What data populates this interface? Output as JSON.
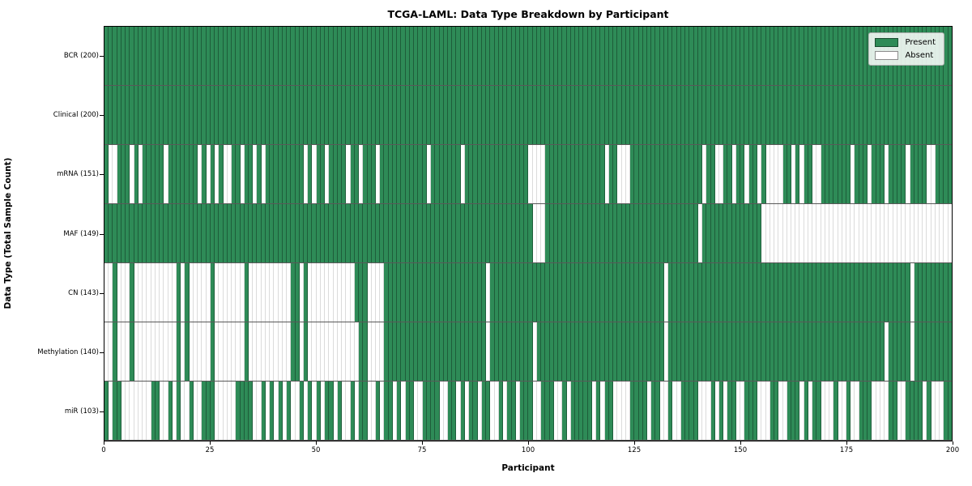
{
  "title": "TCGA-LAML: Data Type Breakdown by Participant",
  "x_axis": {
    "label": "Participant",
    "min": 0,
    "max": 200,
    "ticks": [
      0,
      25,
      50,
      75,
      100,
      125,
      150,
      175,
      200
    ]
  },
  "y_axis": {
    "label": "Data Type (Total Sample Count)"
  },
  "legend": {
    "present_label": "Present",
    "absent_label": "Absent"
  },
  "colors": {
    "present": "#2e8b57",
    "absent": "#ffffff"
  },
  "chart_data": {
    "type": "heatmap",
    "n_participants": 200,
    "legend_position": "upper right",
    "rows": [
      {
        "label": "BCR (200)",
        "name": "BCR",
        "present_count": 200,
        "pattern": "11111111111111111111111111111111111111111111111111111111111111111111111111111111111111111111111111111111111111111111111111111111111111111111111111111111111111111111111111111111111111111111111111111111"
      },
      {
        "label": "Clinical (200)",
        "name": "Clinical",
        "present_count": 200,
        "pattern": "11111111111111111111111111111111111111111111111111111111111111111111111111111111111111111111111111111111111111111111111111111111111111111111111111111111111111111111111111111111111111111111111111111111"
      },
      {
        "label": "mRNA (151)",
        "name": "mRNA",
        "present_count": 151,
        "pattern": "10011101011111011111110101010011011010111111111010110111101101110111111111110111111101111111111111110000111111111111110110001111111111111111101100110110110100001101011001111111011101110111101111001111"
      },
      {
        "label": "MAF (149)",
        "name": "MAF",
        "present_count": 149,
        "pattern": "11111111111111111111111111111111111111111111111111111111111111111111111111111111111111111111111111111000111111111111111111111111111111111111011111111111111000000000000000000000000000000000000000000000"
      },
      {
        "label": "CN (143)",
        "name": "CN",
        "present_count": 143,
        "pattern": "00100010000000000101000001000000010000000000110100000000000111000011111111111111111111111101111111111111111111111111111111111111111101111111111111111111111111111111111111111111111111111111110111111111"
      },
      {
        "label": "Methylation (140)",
        "name": "Methylation",
        "present_count": 140,
        "pattern": "00100010000000000101000001000000010000000000110100000000000011000011111111111111111111111101111111111011111111111111111111111111111101111111111111111111111111111111111111111111111111110111110111111111"
      },
      {
        "label": "miR (103)",
        "name": "miR",
        "present_count": 103,
        "pattern": "10110000000110010100100111000001111001010101001010101101001011001011010110011110011010110110010110111001110010111110101100001111011001001111000101011001110001100111010110001001001110000110011110100011"
      }
    ]
  }
}
